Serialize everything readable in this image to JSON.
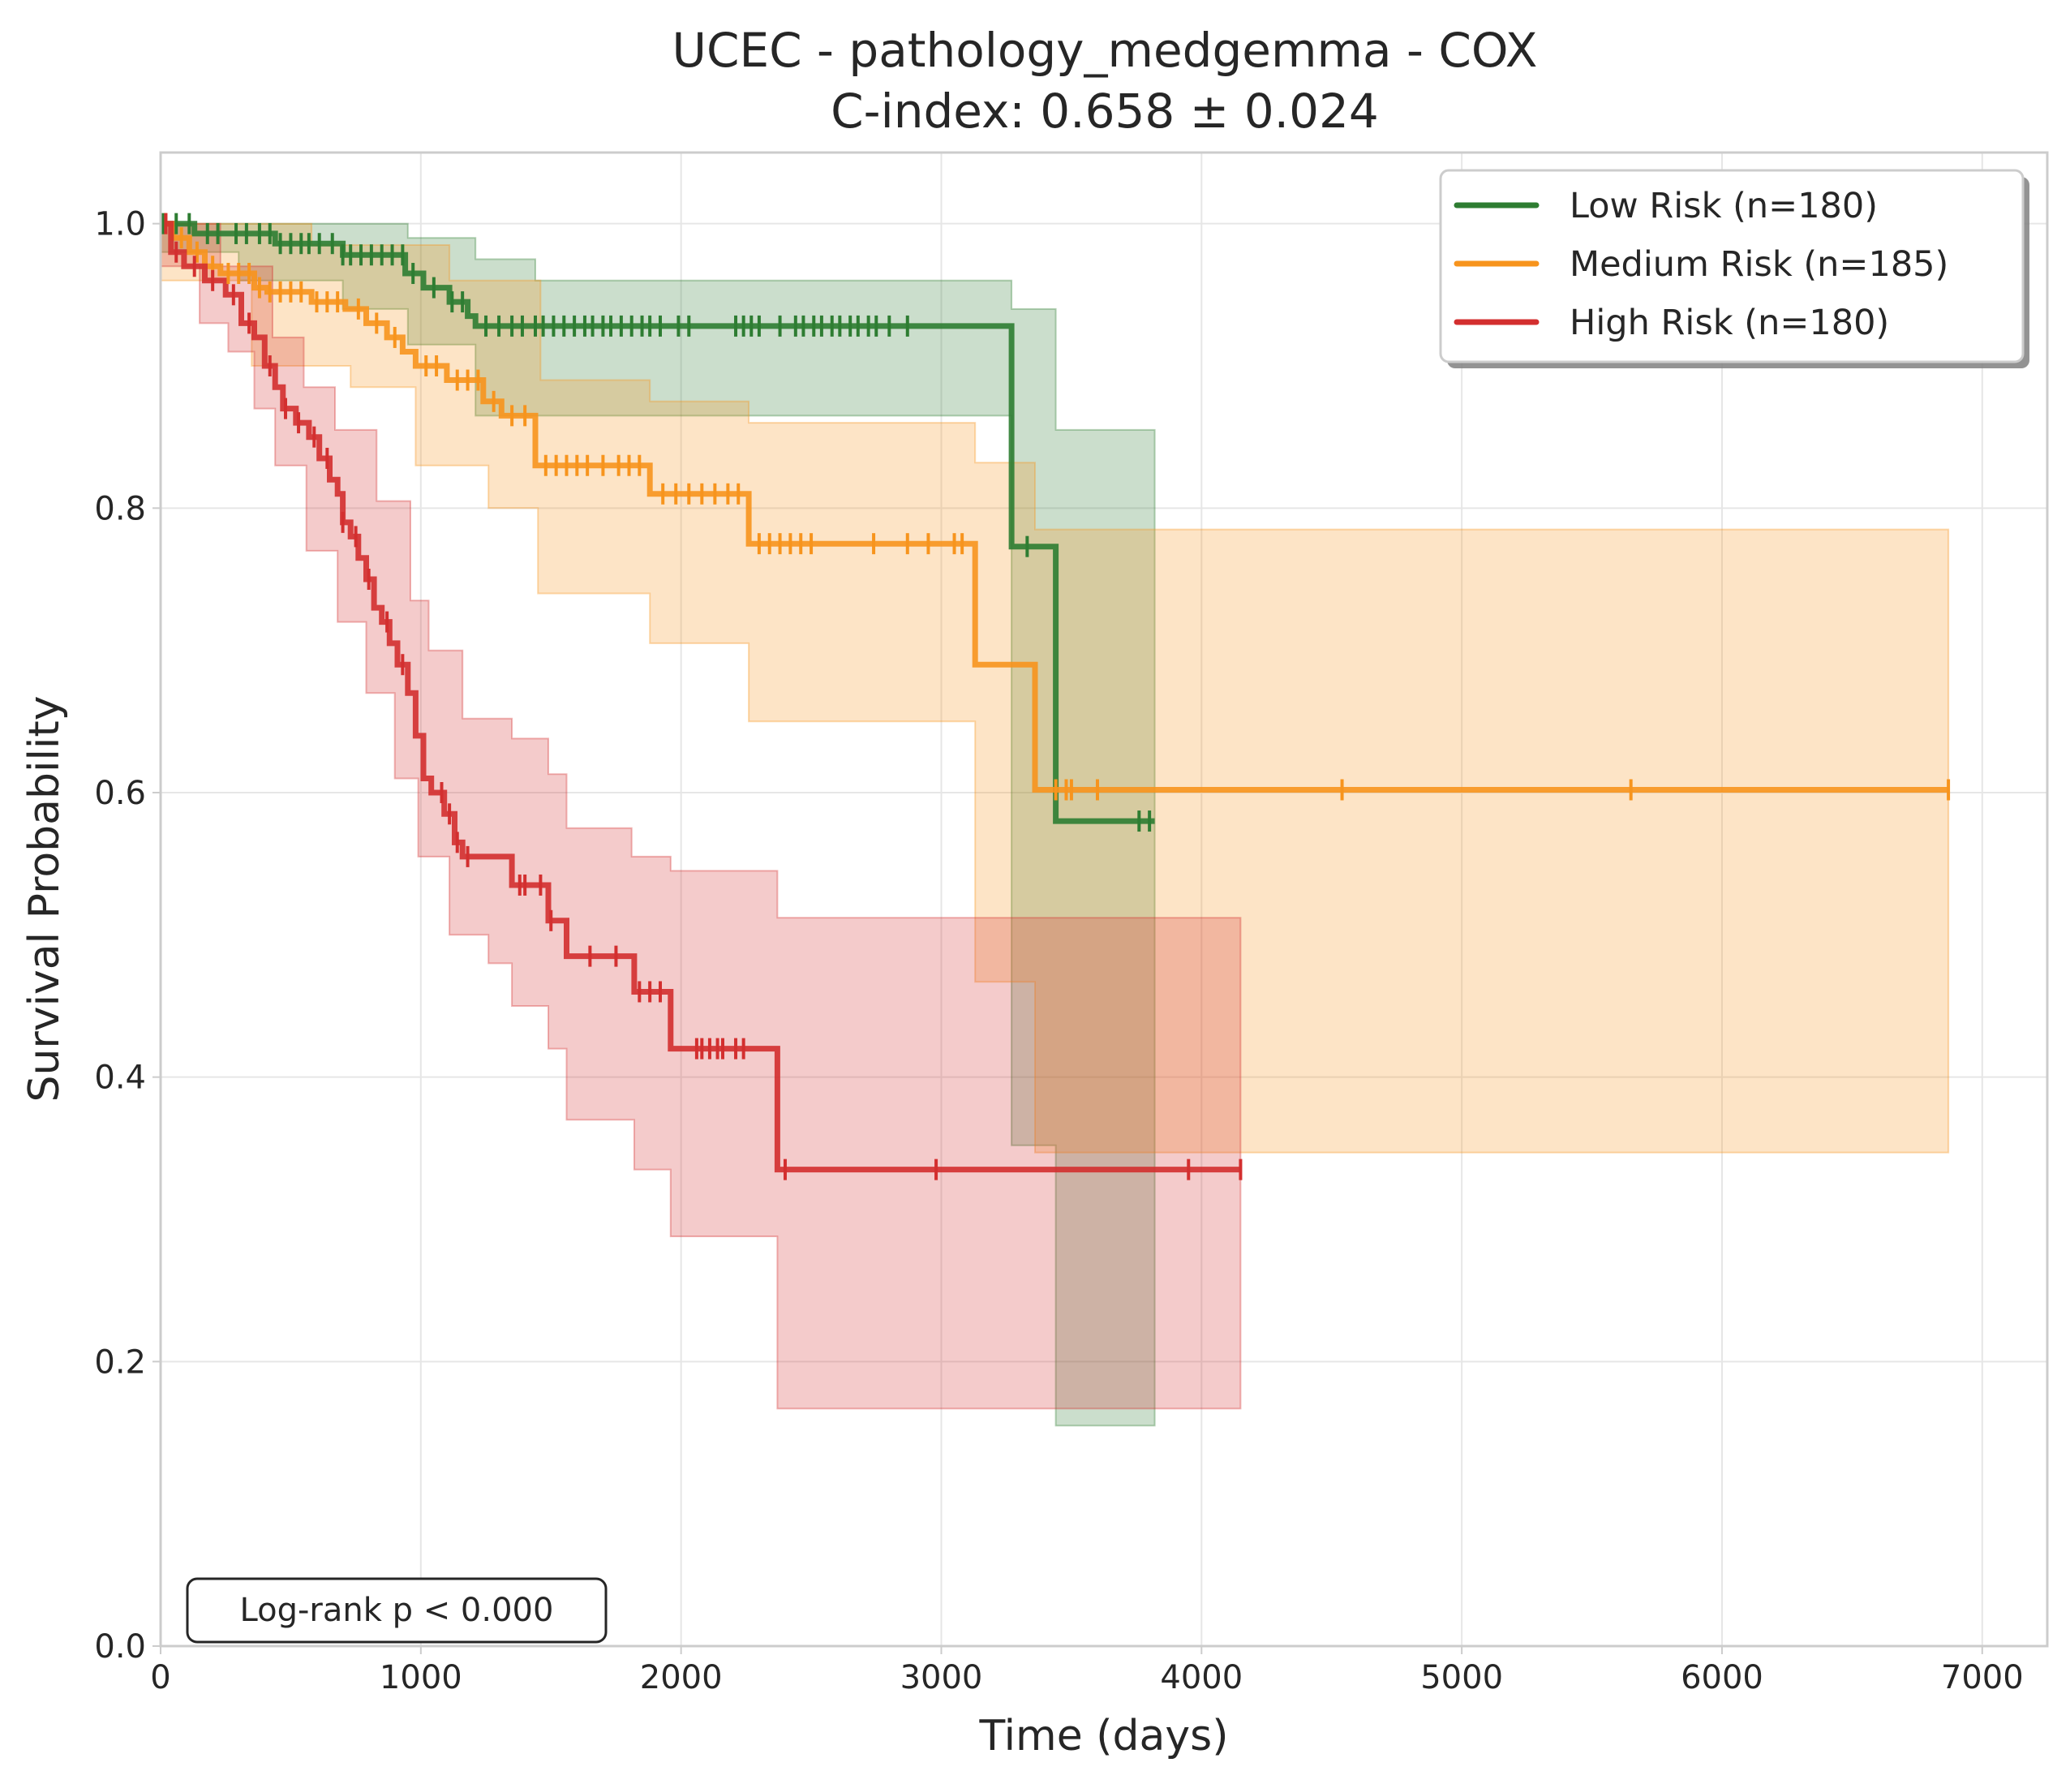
{
  "chart_data": {
    "type": "line",
    "title": "UCEC - pathology_medgemma - COX",
    "subtitle": "C-index: 0.658 ± 0.024",
    "xlabel": "Time (days)",
    "ylabel": "Survival Probability",
    "xlim": [
      0,
      7250
    ],
    "ylim": [
      0,
      1.05
    ],
    "xticks": [
      0,
      1000,
      2000,
      3000,
      4000,
      5000,
      6000,
      7000
    ],
    "xtick_labels": [
      "0",
      "1000",
      "2000",
      "3000",
      "4000",
      "5000",
      "6000",
      "7000"
    ],
    "yticks": [
      0.0,
      0.2,
      0.4,
      0.6,
      0.8,
      1.0
    ],
    "ytick_labels": [
      "0.0",
      "0.2",
      "0.4",
      "0.6",
      "0.8",
      "1.0"
    ],
    "grid": true,
    "legend_position": "top-right",
    "annotation": "Log-rank p < 0.000",
    "series": [
      {
        "name": "Low Risk (n=180)",
        "color": "#2e7d32",
        "steps": [
          [
            0,
            1.0
          ],
          [
            130,
            0.993
          ],
          [
            440,
            0.986
          ],
          [
            700,
            0.978
          ],
          [
            940,
            0.965
          ],
          [
            1010,
            0.955
          ],
          [
            1110,
            0.945
          ],
          [
            1180,
            0.935
          ],
          [
            1210,
            0.928
          ],
          [
            3250,
            0.928
          ],
          [
            3270,
            0.773
          ],
          [
            3430,
            0.773
          ],
          [
            3440,
            0.58
          ],
          [
            3820,
            0.58
          ]
        ],
        "ci_upper": [
          [
            0,
            1.0
          ],
          [
            440,
            1.0
          ],
          [
            950,
            0.99
          ],
          [
            1210,
            0.975
          ],
          [
            1440,
            0.96
          ],
          [
            3250,
            0.96
          ],
          [
            3270,
            0.94
          ],
          [
            3430,
            0.94
          ],
          [
            3440,
            0.855
          ],
          [
            3820,
            0.855
          ]
        ],
        "ci_lower": [
          [
            0,
            0.98
          ],
          [
            300,
            0.96
          ],
          [
            700,
            0.94
          ],
          [
            950,
            0.915
          ],
          [
            1210,
            0.865
          ],
          [
            3250,
            0.865
          ],
          [
            3270,
            0.352
          ],
          [
            3430,
            0.352
          ],
          [
            3440,
            0.155
          ],
          [
            3820,
            0.155
          ]
        ],
        "censored": [
          10,
          60,
          110,
          180,
          220,
          290,
          330,
          380,
          420,
          460,
          500,
          540,
          570,
          610,
          660,
          700,
          730,
          770,
          810,
          850,
          890,
          930,
          970,
          1050,
          1120,
          1160,
          1250,
          1300,
          1350,
          1390,
          1440,
          1470,
          1510,
          1550,
          1590,
          1630,
          1660,
          1700,
          1730,
          1770,
          1810,
          1850,
          1880,
          1920,
          1990,
          2030,
          2210,
          2240,
          2270,
          2300,
          2380,
          2440,
          2470,
          2510,
          2540,
          2580,
          2610,
          2650,
          2680,
          2720,
          2750,
          2800,
          2870,
          3330,
          3760,
          3800
        ]
      },
      {
        "name": "Medium Risk (n=185)",
        "color": "#f7941d",
        "steps": [
          [
            0,
            1.0
          ],
          [
            50,
            0.99
          ],
          [
            110,
            0.98
          ],
          [
            170,
            0.97
          ],
          [
            230,
            0.965
          ],
          [
            360,
            0.955
          ],
          [
            410,
            0.952
          ],
          [
            580,
            0.945
          ],
          [
            710,
            0.94
          ],
          [
            790,
            0.93
          ],
          [
            870,
            0.92
          ],
          [
            930,
            0.91
          ],
          [
            980,
            0.9
          ],
          [
            1100,
            0.89
          ],
          [
            1240,
            0.875
          ],
          [
            1310,
            0.865
          ],
          [
            1440,
            0.83
          ],
          [
            1880,
            0.81
          ],
          [
            2260,
            0.775
          ],
          [
            3120,
            0.775
          ],
          [
            3130,
            0.69
          ],
          [
            3350,
            0.69
          ],
          [
            3360,
            0.602
          ],
          [
            6870,
            0.602
          ]
        ],
        "ci_upper": [
          [
            0,
            1.0
          ],
          [
            580,
            0.985
          ],
          [
            1110,
            0.96
          ],
          [
            1460,
            0.89
          ],
          [
            1880,
            0.875
          ],
          [
            2260,
            0.86
          ],
          [
            3120,
            0.86
          ],
          [
            3130,
            0.832
          ],
          [
            3360,
            0.785
          ],
          [
            6870,
            0.785
          ]
        ],
        "ci_lower": [
          [
            0,
            0.96
          ],
          [
            350,
            0.9
          ],
          [
            730,
            0.885
          ],
          [
            980,
            0.83
          ],
          [
            1260,
            0.8
          ],
          [
            1450,
            0.74
          ],
          [
            1880,
            0.705
          ],
          [
            2260,
            0.65
          ],
          [
            3120,
            0.65
          ],
          [
            3130,
            0.467
          ],
          [
            3360,
            0.347
          ],
          [
            6870,
            0.347
          ]
        ],
        "censored": [
          20,
          80,
          140,
          200,
          260,
          300,
          340,
          380,
          420,
          460,
          500,
          540,
          600,
          640,
          680,
          760,
          830,
          900,
          1020,
          1060,
          1140,
          1180,
          1220,
          1280,
          1350,
          1400,
          1480,
          1520,
          1560,
          1600,
          1640,
          1700,
          1760,
          1800,
          1840,
          1930,
          1980,
          2030,
          2080,
          2130,
          2180,
          2220,
          2300,
          2340,
          2380,
          2420,
          2460,
          2500,
          2740,
          2870,
          2950,
          3050,
          3080,
          3440,
          3480,
          3500,
          3600,
          4540,
          5650,
          6870
        ]
      },
      {
        "name": "High Risk (n=180)",
        "color": "#d32f2f",
        "steps": [
          [
            0,
            1.0
          ],
          [
            40,
            0.98
          ],
          [
            90,
            0.97
          ],
          [
            170,
            0.96
          ],
          [
            250,
            0.95
          ],
          [
            310,
            0.93
          ],
          [
            360,
            0.92
          ],
          [
            400,
            0.9
          ],
          [
            440,
            0.885
          ],
          [
            470,
            0.87
          ],
          [
            520,
            0.86
          ],
          [
            570,
            0.85
          ],
          [
            610,
            0.835
          ],
          [
            650,
            0.82
          ],
          [
            680,
            0.81
          ],
          [
            700,
            0.79
          ],
          [
            730,
            0.78
          ],
          [
            760,
            0.765
          ],
          [
            790,
            0.75
          ],
          [
            820,
            0.73
          ],
          [
            850,
            0.72
          ],
          [
            880,
            0.705
          ],
          [
            910,
            0.69
          ],
          [
            950,
            0.67
          ],
          [
            980,
            0.64
          ],
          [
            1010,
            0.61
          ],
          [
            1040,
            0.6
          ],
          [
            1090,
            0.585
          ],
          [
            1130,
            0.565
          ],
          [
            1160,
            0.555
          ],
          [
            1350,
            0.535
          ],
          [
            1490,
            0.51
          ],
          [
            1560,
            0.485
          ],
          [
            1820,
            0.46
          ],
          [
            1960,
            0.42
          ],
          [
            2370,
            0.335
          ],
          [
            4150,
            0.335
          ]
        ],
        "ci_upper": [
          [
            0,
            1.0
          ],
          [
            230,
            0.97
          ],
          [
            430,
            0.92
          ],
          [
            550,
            0.885
          ],
          [
            670,
            0.855
          ],
          [
            830,
            0.805
          ],
          [
            960,
            0.735
          ],
          [
            1030,
            0.7
          ],
          [
            1160,
            0.652
          ],
          [
            1350,
            0.638
          ],
          [
            1490,
            0.613
          ],
          [
            1560,
            0.575
          ],
          [
            1810,
            0.555
          ],
          [
            1960,
            0.545
          ],
          [
            2370,
            0.512
          ],
          [
            4150,
            0.512
          ]
        ],
        "ci_lower": [
          [
            0,
            0.97
          ],
          [
            150,
            0.93
          ],
          [
            260,
            0.91
          ],
          [
            360,
            0.87
          ],
          [
            440,
            0.83
          ],
          [
            560,
            0.77
          ],
          [
            680,
            0.72
          ],
          [
            790,
            0.67
          ],
          [
            900,
            0.61
          ],
          [
            990,
            0.555
          ],
          [
            1110,
            0.5
          ],
          [
            1260,
            0.48
          ],
          [
            1350,
            0.45
          ],
          [
            1490,
            0.42
          ],
          [
            1560,
            0.37
          ],
          [
            1820,
            0.335
          ],
          [
            1960,
            0.288
          ],
          [
            2370,
            0.167
          ],
          [
            4150,
            0.167
          ]
        ],
        "censored": [
          20,
          60,
          130,
          200,
          280,
          340,
          420,
          480,
          530,
          590,
          640,
          700,
          750,
          800,
          870,
          930,
          1080,
          1110,
          1140,
          1180,
          1380,
          1400,
          1460,
          1500,
          1650,
          1750,
          1840,
          1880,
          1920,
          2060,
          2080,
          2110,
          2140,
          2160,
          2210,
          2240,
          2400,
          2980,
          3950,
          4150
        ]
      }
    ]
  }
}
